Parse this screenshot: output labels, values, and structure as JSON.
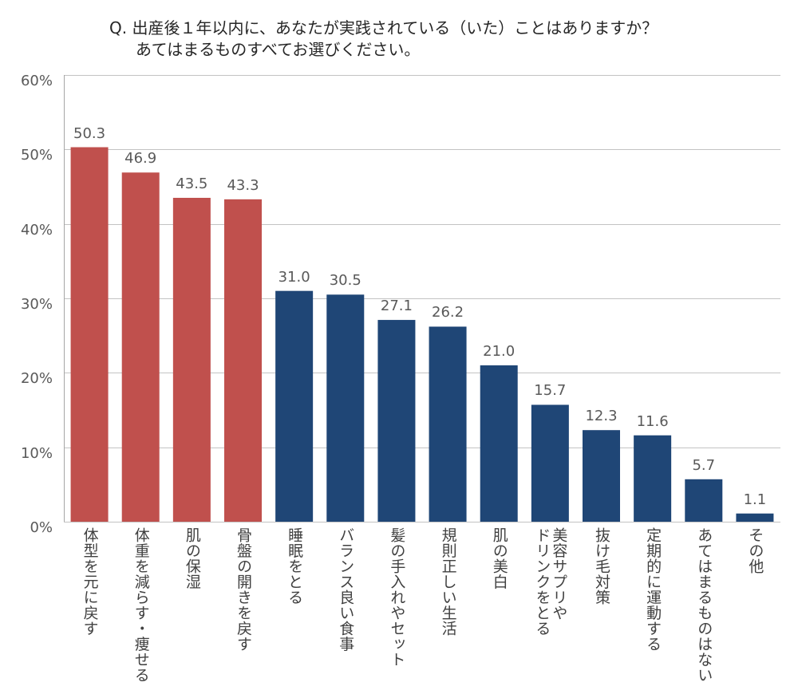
{
  "chart_data": {
    "type": "bar",
    "title": "Q. 出産後１年以内に、あなたが実践されている（いた）ことはありますか？",
    "subtitle": "あてはまるものすべてお選びください。",
    "categories": [
      "体型を元に戻す",
      "体重を減らす・痩せる",
      "肌の保湿",
      "骨盤の開きを戻す",
      "睡眠をとる",
      "バランス良い食事",
      "髪の手入れやセット",
      "規則正しい生活",
      "肌の美白",
      "美容サプリや\nドリンクをとる",
      "抜け毛対策",
      "定期的に運動する",
      "あてはまるものはない",
      "その他"
    ],
    "values": [
      50.3,
      46.9,
      43.5,
      43.3,
      31.0,
      30.5,
      27.1,
      26.2,
      21.0,
      15.7,
      12.3,
      11.6,
      5.7,
      1.1
    ],
    "bar_colors": [
      "#c0504d",
      "#c0504d",
      "#c0504d",
      "#c0504d",
      "#1f4676",
      "#1f4676",
      "#1f4676",
      "#1f4676",
      "#1f4676",
      "#1f4676",
      "#1f4676",
      "#1f4676",
      "#1f4676",
      "#1f4676"
    ],
    "ylim": [
      0,
      60
    ],
    "yticks": [
      0,
      10,
      20,
      30,
      40,
      50,
      60
    ],
    "ytick_labels": [
      "0%",
      "10%",
      "20%",
      "30%",
      "40%",
      "50%",
      "60%"
    ],
    "grid": true
  }
}
